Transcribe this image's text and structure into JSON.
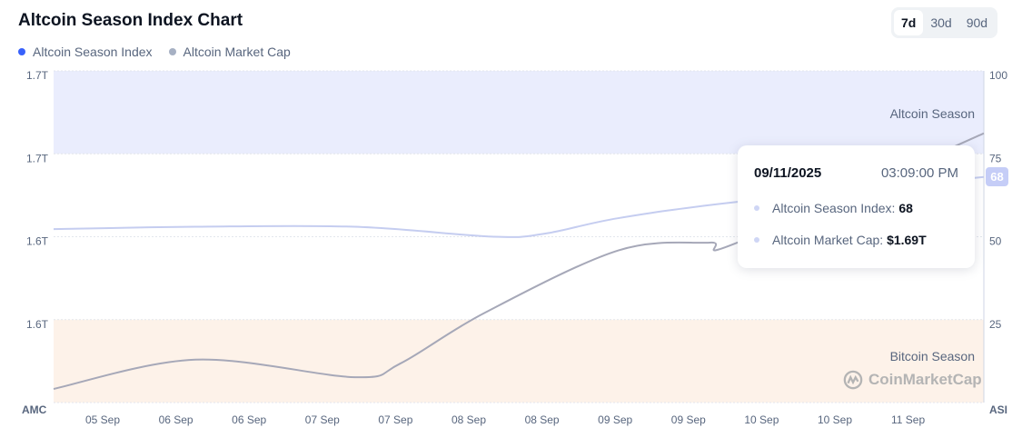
{
  "header": {
    "title": "Altcoin Season Index Chart",
    "ranges": [
      "7d",
      "30d",
      "90d"
    ],
    "active_range": "7d"
  },
  "legend": [
    {
      "label": "Altcoin Season Index",
      "color": "#3861fb"
    },
    {
      "label": "Altcoin Market Cap",
      "color": "#a6b0c3"
    }
  ],
  "tooltip": {
    "date": "09/11/2025",
    "time": "03:09:00 PM",
    "index_label": "Altcoin Season Index:",
    "index_value": "68",
    "mcap_label": "Altcoin Market Cap:",
    "mcap_value": "$1.69T"
  },
  "watermark": "CoinMarketCap",
  "chart_data": {
    "type": "line",
    "x_domain": [
      "2025-09-04T15:09",
      "2025-09-11T15:09"
    ],
    "x_ticks": [
      "05 Sep",
      "06 Sep",
      "06 Sep",
      "07 Sep",
      "07 Sep",
      "08 Sep",
      "08 Sep",
      "09 Sep",
      "09 Sep",
      "10 Sep",
      "10 Sep",
      "11 Sep"
    ],
    "left_axis": {
      "label": "AMC",
      "ticks": [
        "1.7T",
        "1.7T",
        "1.6T",
        "1.6T"
      ],
      "range": [
        1.55,
        1.72
      ],
      "unit": "T"
    },
    "right_axis": {
      "label": "ASI",
      "ticks": [
        "100",
        "75",
        "50",
        "25"
      ],
      "range": [
        0,
        100
      ]
    },
    "zones": [
      {
        "label": "Altcoin Season",
        "from": 75,
        "to": 100,
        "color": "#eaedfd"
      },
      {
        "label": "Bitcoin Season",
        "from": 0,
        "to": 25,
        "color": "#fdf2e9"
      }
    ],
    "grid": true,
    "series": [
      {
        "name": "Altcoin Season Index",
        "axis": "right",
        "color": "#c5cdf0",
        "points": [
          [
            "2025-09-04T15:09",
            52.3
          ],
          [
            "2025-09-05T16:45",
            53
          ],
          [
            "2025-09-06T21:33",
            53
          ],
          [
            "2025-09-07T22:40",
            50
          ],
          [
            "2025-09-08T08:05",
            51
          ],
          [
            "2025-09-08T21:09",
            55.6
          ],
          [
            "2025-09-09T18:39",
            60.5
          ],
          [
            "2025-09-11T15:09",
            68
          ]
        ]
      },
      {
        "name": "Altcoin Market Cap",
        "axis": "left",
        "color": "#a6a8b8",
        "points": [
          [
            "2025-09-04T15:09",
            1.557
          ],
          [
            "2025-09-05T16:45",
            1.572
          ],
          [
            "2025-09-06T21:33",
            1.563
          ],
          [
            "2025-09-07T05:45",
            1.57
          ],
          [
            "2025-09-07T21:00",
            1.596
          ],
          [
            "2025-09-08T21:09",
            1.628
          ],
          [
            "2025-09-09T13:39",
            1.632
          ],
          [
            "2025-09-09T18:39",
            1.632
          ],
          [
            "2025-09-11T15:09",
            1.688
          ]
        ]
      }
    ]
  }
}
